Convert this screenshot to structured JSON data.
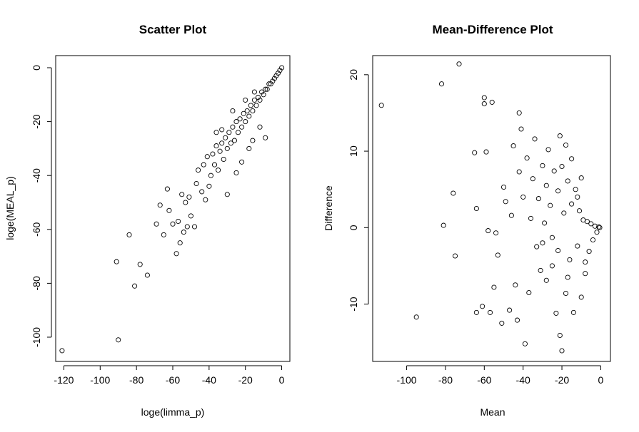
{
  "chart_data": [
    {
      "type": "scatter",
      "title": "Scatter Plot",
      "xlabel": "loge(limma_p)",
      "ylabel": "loge(MEAL_p)",
      "xlim": [
        -124.5,
        4.5
      ],
      "ylim": [
        -109.0,
        4.5
      ],
      "xticks": [
        -120,
        -100,
        -80,
        -60,
        -40,
        -20,
        0
      ],
      "yticks": [
        -100,
        -80,
        -60,
        -40,
        -20,
        0
      ],
      "grid": false,
      "points": [
        [
          -121,
          -105
        ],
        [
          -90,
          -101
        ],
        [
          -91,
          -72
        ],
        [
          -84,
          -62
        ],
        [
          -81,
          -81
        ],
        [
          -78,
          -73
        ],
        [
          -74,
          -77
        ],
        [
          -69,
          -58
        ],
        [
          -67,
          -51
        ],
        [
          -65,
          -62
        ],
        [
          -63,
          -45
        ],
        [
          -62,
          -53
        ],
        [
          -60,
          -58
        ],
        [
          -58,
          -69
        ],
        [
          -57,
          -57
        ],
        [
          -56,
          -65
        ],
        [
          -55,
          -47
        ],
        [
          -54,
          -61
        ],
        [
          -53,
          -50
        ],
        [
          -52,
          -59
        ],
        [
          -51,
          -48
        ],
        [
          -50,
          -55
        ],
        [
          -48,
          -59
        ],
        [
          -47,
          -43
        ],
        [
          -46,
          -38
        ],
        [
          -44,
          -46
        ],
        [
          -43,
          -36
        ],
        [
          -42,
          -49
        ],
        [
          -41,
          -33
        ],
        [
          -40,
          -44
        ],
        [
          -39,
          -40
        ],
        [
          -38,
          -32
        ],
        [
          -37,
          -36
        ],
        [
          -36,
          -29
        ],
        [
          -35,
          -38
        ],
        [
          -34,
          -31
        ],
        [
          -33,
          -28
        ],
        [
          -32,
          -34
        ],
        [
          -31,
          -26
        ],
        [
          -30,
          -30
        ],
        [
          -29,
          -24
        ],
        [
          -28,
          -28
        ],
        [
          -27,
          -22
        ],
        [
          -26,
          -27
        ],
        [
          -25,
          -20
        ],
        [
          -24,
          -24
        ],
        [
          -23,
          -19
        ],
        [
          -22,
          -22
        ],
        [
          -21,
          -17
        ],
        [
          -20,
          -20
        ],
        [
          -19,
          -16
        ],
        [
          -18,
          -18
        ],
        [
          -17,
          -14
        ],
        [
          -16,
          -16
        ],
        [
          -15,
          -12
        ],
        [
          -14,
          -14
        ],
        [
          -13,
          -11
        ],
        [
          -12,
          -12
        ],
        [
          -11,
          -9
        ],
        [
          -10,
          -10
        ],
        [
          -9,
          -8
        ],
        [
          -8,
          -8
        ],
        [
          -7,
          -6
        ],
        [
          -6,
          -6
        ],
        [
          -5,
          -5
        ],
        [
          -4,
          -4
        ],
        [
          -3,
          -3
        ],
        [
          -2,
          -2
        ],
        [
          -1,
          -1
        ],
        [
          0,
          0
        ],
        [
          -30,
          -47
        ],
        [
          -25,
          -39
        ],
        [
          -22,
          -35
        ],
        [
          -18,
          -30
        ],
        [
          -16,
          -27
        ],
        [
          -12,
          -22
        ],
        [
          -9,
          -26
        ],
        [
          -27,
          -16
        ],
        [
          -20,
          -12
        ],
        [
          -15,
          -9
        ],
        [
          -33,
          -23
        ],
        [
          -36,
          -24
        ]
      ]
    },
    {
      "type": "scatter",
      "title": "Mean-Difference Plot",
      "xlabel": "Mean",
      "ylabel": "Difference",
      "xlim": [
        -117.5,
        5
      ],
      "ylim": [
        -17.5,
        22.5
      ],
      "xticks": [
        -100,
        -80,
        -60,
        -40,
        -20,
        0
      ],
      "yticks": [
        -10,
        0,
        10,
        20
      ],
      "grid": false,
      "points": [
        [
          -113,
          16
        ],
        [
          -95,
          -11.7
        ],
        [
          -82,
          18.8
        ],
        [
          -81,
          0.3
        ],
        [
          -76,
          4.5
        ],
        [
          -75,
          -3.7
        ],
        [
          -73,
          21.4
        ],
        [
          -65,
          9.8
        ],
        [
          -64,
          2.5
        ],
        [
          -64,
          -11.1
        ],
        [
          -61,
          -10.3
        ],
        [
          -60,
          17
        ],
        [
          -60,
          16.2
        ],
        [
          -59,
          9.9
        ],
        [
          -58,
          -0.4
        ],
        [
          -57,
          -11.1
        ],
        [
          -56,
          16.4
        ],
        [
          -55,
          -7.8
        ],
        [
          -54,
          -0.7
        ],
        [
          -53,
          -3.6
        ],
        [
          -51,
          -12.5
        ],
        [
          -50,
          5.3
        ],
        [
          -49,
          3.4
        ],
        [
          -47,
          -10.8
        ],
        [
          -46,
          1.6
        ],
        [
          -45,
          10.7
        ],
        [
          -44,
          -7.5
        ],
        [
          -43,
          -12.1
        ],
        [
          -42,
          15.0
        ],
        [
          -42,
          7.3
        ],
        [
          -41,
          12.9
        ],
        [
          -40,
          4.0
        ],
        [
          -39,
          -15.2
        ],
        [
          -38,
          9.1
        ],
        [
          -37,
          -8.5
        ],
        [
          -36,
          1.2
        ],
        [
          -35,
          6.4
        ],
        [
          -34,
          11.6
        ],
        [
          -33,
          -2.5
        ],
        [
          -32,
          3.8
        ],
        [
          -31,
          -5.6
        ],
        [
          -30,
          8.1
        ],
        [
          -29,
          0.6
        ],
        [
          -28,
          -6.9
        ],
        [
          -27,
          10.2
        ],
        [
          -26,
          2.9
        ],
        [
          -25,
          -1.3
        ],
        [
          -24,
          7.4
        ],
        [
          -23,
          -11.2
        ],
        [
          -22,
          4.8
        ],
        [
          -21,
          -14.1
        ],
        [
          -21,
          12.0
        ],
        [
          -20,
          -16.1
        ],
        [
          -19,
          1.9
        ],
        [
          -18,
          -8.6
        ],
        [
          -17,
          6.1
        ],
        [
          -16,
          -4.2
        ],
        [
          -15,
          3.1
        ],
        [
          -14,
          -11.1
        ],
        [
          -13,
          5.0
        ],
        [
          -12,
          -2.4
        ],
        [
          -11,
          2.2
        ],
        [
          -10,
          -9.1
        ],
        [
          -9,
          1.0
        ],
        [
          -8,
          -6.0
        ],
        [
          -7,
          0.8
        ],
        [
          -6,
          -3.1
        ],
        [
          -5,
          0.5
        ],
        [
          -4,
          -1.6
        ],
        [
          -3,
          0.2
        ],
        [
          -2,
          -0.6
        ],
        [
          -1,
          0.1
        ],
        [
          -0.5,
          0
        ],
        [
          -30,
          -2
        ],
        [
          -25,
          -5
        ],
        [
          -20,
          8
        ],
        [
          -17,
          -6.5
        ],
        [
          -15,
          9
        ],
        [
          -12,
          4
        ],
        [
          -28,
          5.5
        ],
        [
          -22,
          -3
        ],
        [
          -18,
          10.8
        ],
        [
          -10,
          6.5
        ],
        [
          -8,
          -4.5
        ]
      ]
    }
  ]
}
